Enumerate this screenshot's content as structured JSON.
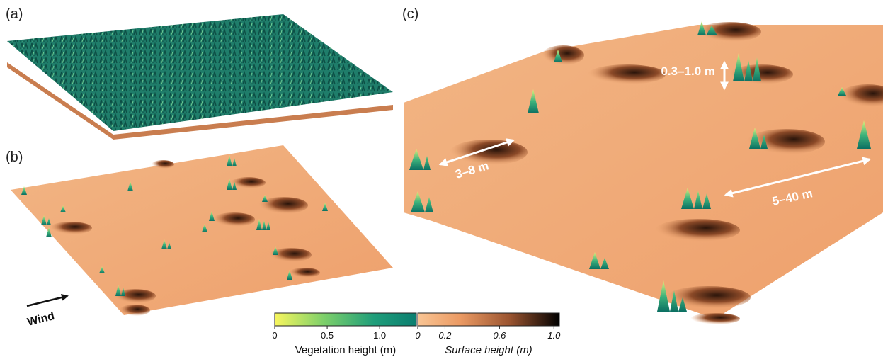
{
  "panels": [
    {
      "label": "(a)"
    },
    {
      "label": "(b)",
      "wind": "Wind"
    },
    {
      "label": "(c)",
      "annotations": [
        "0.3–1.0 m",
        "3–8 m",
        "5–40 m"
      ]
    }
  ],
  "colorbars": [
    {
      "label": "Vegetation height (m)",
      "lim": [
        0,
        1.35
      ],
      "ticks": [
        0,
        0.5,
        {
          "value": 1.0,
          "label": "1.0"
        }
      ]
    },
    {
      "label": "Surface height (m)",
      "lim": [
        0,
        1.04
      ],
      "ticks": [
        {
          "value": 0,
          "label": "0"
        },
        0.2,
        0.6,
        {
          "value": 1.0,
          "label": "1.0"
        }
      ]
    }
  ]
}
